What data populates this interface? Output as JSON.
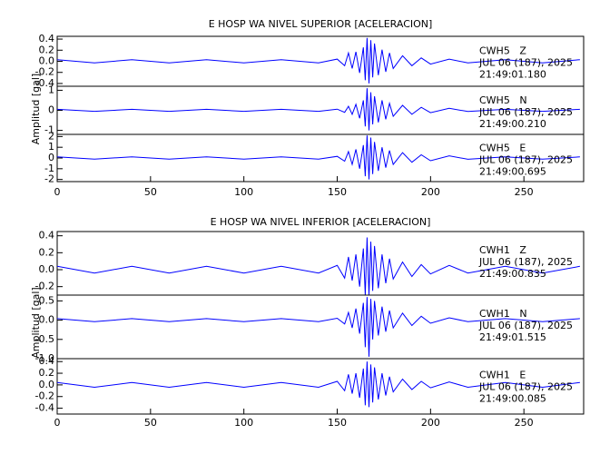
{
  "chart_data": [
    {
      "type": "line",
      "title": "E HOSP WA NIVEL SUPERIOR [ACELERACION]",
      "ylabel": "Amplitud [gal]",
      "color": "#0000ff",
      "xlim": [
        0,
        282
      ],
      "xticks": [
        0,
        50,
        100,
        150,
        200,
        250
      ],
      "x": [
        0,
        20,
        40,
        60,
        80,
        100,
        120,
        140,
        150,
        154,
        156,
        158,
        160,
        162,
        164,
        165,
        166,
        167,
        168,
        169,
        170,
        172,
        174,
        176,
        178,
        180,
        185,
        190,
        195,
        200,
        210,
        220,
        240,
        260,
        280
      ],
      "panels": [
        {
          "station": "CWH5   Z",
          "date": "JUL 06 (187), 2025",
          "time": "21:49:01.180",
          "ylim": [
            -0.45,
            0.45
          ],
          "yticks": [
            0.4,
            0.2,
            {
              "value": 0,
              "label": "0.0"
            },
            -0.2,
            -0.4
          ],
          "values": [
            0.03,
            -0.03,
            0.03,
            -0.03,
            0.03,
            -0.03,
            0.03,
            -0.03,
            0.04,
            -0.08,
            0.15,
            -0.13,
            0.17,
            -0.21,
            0.25,
            -0.34,
            0.42,
            -0.4,
            0.38,
            -0.29,
            0.32,
            -0.25,
            0.21,
            -0.19,
            0.15,
            -0.13,
            0.1,
            -0.08,
            0.06,
            -0.05,
            0.04,
            -0.03,
            0.03,
            -0.03,
            0.03
          ]
        },
        {
          "station": "CWH5   N",
          "date": "JUL 06 (187), 2025",
          "time": "21:49:00.210",
          "ylim": [
            -1.2,
            1.2
          ],
          "yticks": [
            1,
            0,
            -1
          ],
          "values": [
            0.05,
            -0.05,
            0.05,
            -0.05,
            0.05,
            -0.05,
            0.05,
            -0.05,
            0.06,
            -0.1,
            0.2,
            -0.2,
            0.3,
            -0.4,
            0.5,
            -0.8,
            1.1,
            -1.0,
            0.9,
            -0.7,
            0.7,
            -0.6,
            0.5,
            -0.45,
            0.35,
            -0.3,
            0.25,
            -0.2,
            0.15,
            -0.12,
            0.1,
            -0.06,
            0.05,
            -0.05,
            0.05
          ]
        },
        {
          "station": "CWH5   E",
          "date": "JUL 06 (187), 2025",
          "time": "21:49:00.695",
          "ylim": [
            -2.2,
            2.2
          ],
          "yticks": [
            2,
            1,
            0,
            -1,
            -2
          ],
          "values": [
            0.1,
            -0.1,
            0.1,
            -0.1,
            0.1,
            -0.1,
            0.1,
            -0.1,
            0.15,
            -0.3,
            0.6,
            -0.6,
            0.8,
            -1.0,
            1.2,
            -1.7,
            2.1,
            -2.0,
            1.9,
            -1.5,
            1.5,
            -1.2,
            1.0,
            -0.9,
            0.7,
            -0.6,
            0.5,
            -0.4,
            0.3,
            -0.25,
            0.2,
            -0.12,
            0.1,
            -0.1,
            0.1
          ]
        }
      ]
    },
    {
      "type": "line",
      "title": "E HOSP WA NIVEL INFERIOR [ACELERACION]",
      "ylabel": "Amplitud [gal]",
      "color": "#0000ff",
      "xlim": [
        0,
        282
      ],
      "xticks": [
        0,
        50,
        100,
        150,
        200,
        250
      ],
      "x": [
        0,
        20,
        40,
        60,
        80,
        100,
        120,
        140,
        150,
        154,
        156,
        158,
        160,
        162,
        164,
        165,
        166,
        167,
        168,
        169,
        170,
        172,
        174,
        176,
        178,
        180,
        185,
        190,
        195,
        200,
        210,
        220,
        240,
        260,
        280
      ],
      "panels": [
        {
          "station": "CWH1   Z",
          "date": "JUL 06 (187), 2025",
          "time": "21:49:00.835",
          "ylim": [
            -0.3,
            0.45
          ],
          "yticks": [
            0.4,
            0.2,
            {
              "value": 0,
              "label": "0.0"
            },
            -0.2
          ],
          "values": [
            0.04,
            -0.04,
            0.04,
            -0.04,
            0.04,
            -0.04,
            0.04,
            -0.04,
            0.05,
            -0.1,
            0.15,
            -0.13,
            0.18,
            -0.2,
            0.25,
            -0.3,
            0.38,
            -0.3,
            0.33,
            -0.25,
            0.28,
            -0.22,
            0.18,
            -0.16,
            0.13,
            -0.11,
            0.09,
            -0.08,
            0.06,
            -0.05,
            0.05,
            -0.04,
            0.04,
            -0.04,
            0.04
          ]
        },
        {
          "station": "CWH1   N",
          "date": "JUL 06 (187), 2025",
          "time": "21:49:01.515",
          "ylim": [
            -1.0,
            0.65
          ],
          "yticks": [
            0.5,
            {
              "value": 0,
              "label": "0.0"
            },
            -0.5,
            {
              "value": -1,
              "label": "-1.0"
            }
          ],
          "values": [
            0.04,
            -0.04,
            0.04,
            -0.04,
            0.04,
            -0.04,
            0.04,
            -0.04,
            0.05,
            -0.1,
            0.2,
            -0.2,
            0.3,
            -0.35,
            0.45,
            -0.7,
            0.6,
            -0.95,
            0.55,
            -0.5,
            0.5,
            -0.4,
            0.35,
            -0.3,
            0.25,
            -0.2,
            0.18,
            -0.14,
            0.1,
            -0.08,
            0.06,
            -0.04,
            0.04,
            -0.04,
            0.04
          ]
        },
        {
          "station": "CWH1   E",
          "date": "JUL 06 (187), 2025",
          "time": "21:49:00.085",
          "ylim": [
            -0.5,
            0.45
          ],
          "yticks": [
            0.4,
            0.2,
            {
              "value": 0,
              "label": "0.0"
            },
            -0.2,
            -0.4
          ],
          "values": [
            0.04,
            -0.04,
            0.04,
            -0.04,
            0.04,
            -0.04,
            0.04,
            -0.04,
            0.06,
            -0.1,
            0.18,
            -0.15,
            0.2,
            -0.22,
            0.28,
            -0.35,
            0.4,
            -0.38,
            0.35,
            -0.3,
            0.3,
            -0.25,
            0.2,
            -0.18,
            0.14,
            -0.12,
            0.1,
            -0.08,
            0.06,
            -0.05,
            0.05,
            -0.04,
            0.04,
            -0.04,
            0.04
          ]
        }
      ]
    }
  ]
}
